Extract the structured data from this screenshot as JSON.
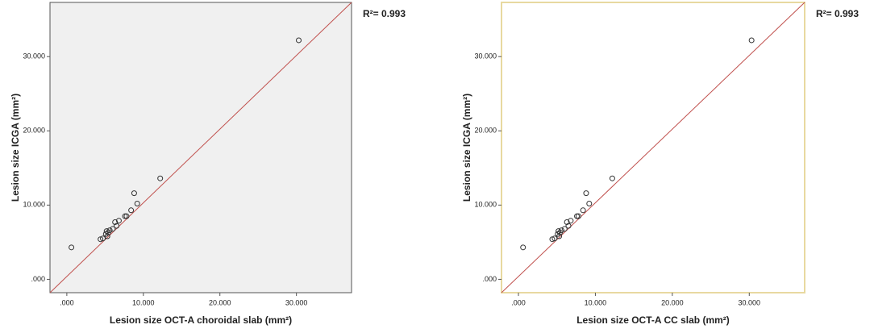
{
  "chart_data": [
    {
      "type": "scatter",
      "x_label": "Lesion size OCT-A choroidal slab (mm²)",
      "y_label": "Lesion size ICGA (mm²)",
      "annotation": "R²= 0.993",
      "background": "#f0f0f0",
      "border_color": "#555555",
      "line_color": "#c0504d",
      "marker_color": "#333333",
      "xlim": [
        -2.2,
        37.2
      ],
      "ylim": [
        -1.8,
        37.3
      ],
      "xticks": [
        {
          "value": 0,
          "label": ".000"
        },
        {
          "value": 10,
          "label": "10.000"
        },
        {
          "value": 20,
          "label": "20.000"
        },
        {
          "value": 30,
          "label": "30.000"
        }
      ],
      "yticks": [
        {
          "value": 0,
          "label": ".000"
        },
        {
          "value": 10,
          "label": "10.000"
        },
        {
          "value": 20,
          "label": "20.000"
        },
        {
          "value": 30,
          "label": "30.000"
        }
      ],
      "x": [
        30.3,
        12.2,
        8.8,
        9.2,
        8.4,
        7.8,
        7.6,
        6.8,
        6.3,
        6.5,
        6.0,
        5.6,
        5.4,
        5.1,
        5.3,
        4.7,
        4.4,
        5.2,
        0.6
      ],
      "values": [
        32.2,
        13.6,
        11.6,
        10.2,
        9.3,
        8.5,
        8.5,
        7.9,
        7.7,
        7.2,
        6.8,
        6.6,
        6.3,
        6.1,
        5.8,
        5.5,
        5.4,
        6.5,
        4.3
      ]
    },
    {
      "type": "scatter",
      "x_label": "Lesion size OCT-A CC  slab (mm²)",
      "y_label": "Lesion size ICGA (mm²)",
      "annotation": "R²= 0.993",
      "background": "#ffffff",
      "border_color": "#e8d9a0",
      "line_color": "#c0504d",
      "marker_color": "#333333",
      "xlim": [
        -2.2,
        37.2
      ],
      "ylim": [
        -1.8,
        37.3
      ],
      "xticks": [
        {
          "value": 0,
          "label": ".000"
        },
        {
          "value": 10,
          "label": "10.000"
        },
        {
          "value": 20,
          "label": "20.000"
        },
        {
          "value": 30,
          "label": "30.000"
        }
      ],
      "yticks": [
        {
          "value": 0,
          "label": ".000"
        },
        {
          "value": 10,
          "label": "10.000"
        },
        {
          "value": 20,
          "label": "20.000"
        },
        {
          "value": 30,
          "label": "30.000"
        }
      ],
      "x": [
        30.3,
        12.2,
        8.8,
        9.2,
        8.4,
        7.8,
        7.6,
        6.8,
        6.3,
        6.5,
        6.0,
        5.6,
        5.4,
        5.1,
        5.3,
        4.7,
        4.4,
        5.2,
        0.6
      ],
      "values": [
        32.2,
        13.6,
        11.6,
        10.2,
        9.3,
        8.5,
        8.5,
        7.9,
        7.7,
        7.2,
        6.8,
        6.6,
        6.3,
        6.1,
        5.8,
        5.5,
        5.4,
        6.5,
        4.3
      ]
    }
  ]
}
